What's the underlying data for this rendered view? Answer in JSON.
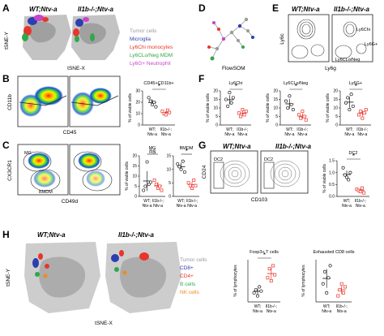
{
  "panels": {
    "A": {
      "letter": "A",
      "titles": [
        "WT;Ntv-a",
        "Il1b-/-;Ntv-a"
      ],
      "xlabel": "tSNE-X",
      "ylabel": "tSNE-Y",
      "legend": [
        {
          "label": "Tumor cells",
          "color": "#9a9a9a"
        },
        {
          "label": "Microglia",
          "color": "#2b3fb0"
        },
        {
          "label": "Ly6Chi monocytes",
          "color": "#e8352b"
        },
        {
          "label": "Ly6CLo/Neg MDM",
          "color": "#2fa84a"
        },
        {
          "label": "Ly6G+ Neutrophil",
          "color": "#c845c8"
        }
      ]
    },
    "B": {
      "letter": "B",
      "xlabel": "CD45",
      "ylabel": "CD11b",
      "bar_title": "CD45+CD11b+",
      "bar_ylabel": "% of viable cells",
      "groups": [
        "WT; Ntv-a",
        "Il1b-/-; Ntv-a"
      ],
      "sig": "*",
      "yticks": [
        "0",
        "10",
        "20",
        "30"
      ]
    },
    "C": {
      "letter": "C",
      "xlabel": "CD49d",
      "ylabel": "CX3CR1",
      "gate1": "MG",
      "gate2": "BMDM",
      "bar_ylabel": "% of viable cells",
      "mg": {
        "title": "MG",
        "sig": "ns",
        "yticks": [
          "0",
          "5",
          "10",
          "15",
          "20"
        ]
      },
      "bmdm": {
        "title": "BMDM",
        "sig": "*",
        "yticks": [
          "0",
          "5",
          "10",
          "15"
        ]
      },
      "groups": [
        "WT; Ntv-a",
        "Il1b-/-; Ntv-a"
      ]
    },
    "D": {
      "letter": "D",
      "label": "FlowSOM"
    },
    "E": {
      "letter": "E",
      "titles": [
        "WT;Ntv-a",
        "Il1b-/-;Ntv-a"
      ],
      "xlabel": "Ly6g",
      "ylabel": "Ly6c",
      "gates": [
        "Ly6Chi",
        "Ly6G+",
        "Ly6CLo/Neg"
      ]
    },
    "F": {
      "letter": "F",
      "bar_ylabel": "% of viable cells",
      "groups": [
        "WT; Ntv-a",
        "Il1b-/-; Ntv-a"
      ],
      "plots": [
        {
          "title": "Ly6Chi",
          "sig": "*",
          "yticks": [
            "0",
            "5",
            "10",
            "15",
            "20"
          ]
        },
        {
          "title": "Ly6CLo/Neg",
          "sig": "*",
          "yticks": [
            "0",
            "5",
            "10",
            "15",
            "20"
          ]
        },
        {
          "title": "Ly6G+",
          "sig": "*",
          "yticks": [
            "0",
            "5",
            "10",
            "15",
            "20"
          ]
        }
      ]
    },
    "G": {
      "letter": "G",
      "titles": [
        "WT;Ntv-a",
        "Il1b-/-;Ntv-a"
      ],
      "xlabel": "CD103",
      "ylabel": "CD24",
      "gate": "DC2",
      "bar_title": "DC2",
      "bar_ylabel": "% of viable cells",
      "sig": "*",
      "yticks": [
        "0.0",
        "0.5",
        "1.0",
        "1.5"
      ],
      "groups": [
        "WT; Ntv-a",
        "Il1b-/-; Ntv-a"
      ]
    },
    "H": {
      "letter": "H",
      "titles": [
        "WT;Ntv-a",
        "Il1b-/-;Ntv-a"
      ],
      "xlabel": "tSNE-X",
      "ylabel": "tSNE-Y",
      "legend": [
        {
          "label": "Tumor cells",
          "color": "#9a9a9a"
        },
        {
          "label": "CD8+",
          "color": "#2b3fb0"
        },
        {
          "label": "CD4+",
          "color": "#e8352b"
        },
        {
          "label": "B cells",
          "color": "#2fa84a"
        },
        {
          "label": "NK cells",
          "color": "#f08a1c"
        }
      ],
      "bar_ylabel": "% of lymphocytes",
      "plots": [
        {
          "title": "Foxp3+ T cells",
          "sig": "*"
        },
        {
          "title": "Exhausted CD8 cells",
          "sig": ""
        }
      ],
      "groups": [
        "WT; Ntv-a",
        "Il1b-/-; Ntv-a"
      ]
    }
  },
  "chart_data": [
    {
      "type": "scatter",
      "title": "CD45+CD11b+",
      "categories": [
        "WT; Ntv-a",
        "Il1b-/-; Ntv-a"
      ],
      "series": [
        {
          "values": [
            24,
            21,
            18,
            20,
            16
          ]
        },
        {
          "values": [
            12,
            10,
            9,
            13,
            11
          ]
        }
      ],
      "ylim": [
        0,
        30
      ]
    },
    {
      "type": "scatter",
      "title": "MG",
      "categories": [
        "WT; Ntv-a",
        "Il1b-/-; Ntv-a"
      ],
      "series": [
        {
          "values": [
            3,
            5,
            17,
            6,
            7
          ]
        },
        {
          "values": [
            8,
            6,
            4,
            5,
            3
          ]
        }
      ],
      "ylim": [
        0,
        20
      ]
    },
    {
      "type": "scatter",
      "title": "BMDM",
      "categories": [
        "WT; Ntv-a",
        "Il1b-/-; Ntv-a"
      ],
      "series": [
        {
          "values": [
            12,
            11,
            10,
            13,
            9
          ]
        },
        {
          "values": [
            5,
            4,
            3,
            6,
            4
          ]
        }
      ],
      "ylim": [
        0,
        15
      ]
    },
    {
      "type": "scatter",
      "title": "Ly6Chi",
      "categories": [
        "WT; Ntv-a",
        "Il1b-/-; Ntv-a"
      ],
      "series": [
        {
          "values": [
            15,
            11,
            19,
            13,
            16
          ]
        },
        {
          "values": [
            7,
            5,
            9,
            6,
            8
          ]
        }
      ],
      "ylim": [
        0,
        20
      ]
    },
    {
      "type": "scatter",
      "title": "Ly6CLo/Neg",
      "categories": [
        "WT; Ntv-a",
        "Il1b-/-; Ntv-a"
      ],
      "series": [
        {
          "values": [
            14,
            10,
            17,
            12,
            9
          ]
        },
        {
          "values": [
            6,
            4,
            8,
            5,
            3
          ]
        }
      ],
      "ylim": [
        0,
        20
      ]
    },
    {
      "type": "scatter",
      "title": "Ly6G+",
      "categories": [
        "WT; Ntv-a",
        "Il1b-/-; Ntv-a"
      ],
      "series": [
        {
          "values": [
            13,
            16,
            9,
            18,
            11
          ]
        },
        {
          "values": [
            6,
            8,
            4,
            7,
            9
          ]
        }
      ],
      "ylim": [
        0,
        20
      ]
    },
    {
      "type": "scatter",
      "title": "DC2",
      "categories": [
        "WT; Ntv-a",
        "Il1b-/-; Ntv-a"
      ],
      "series": [
        {
          "values": [
            1.2,
            0.9,
            0.8,
            0.7,
            1.0
          ]
        },
        {
          "values": [
            0.3,
            0.25,
            0.2,
            0.35,
            0.15
          ]
        }
      ],
      "ylim": [
        0,
        1.5
      ]
    },
    {
      "type": "scatter",
      "title": "Foxp3+ T cells",
      "categories": [
        "WT; Ntv-a",
        "Il1b-/-; Ntv-a"
      ],
      "series": [
        {
          "values": [
            1.5,
            2.0,
            1.0,
            2.5,
            1.8
          ]
        },
        {
          "values": [
            4.0,
            5.5,
            3.5,
            6.0,
            4.5
          ]
        }
      ],
      "ylim": [
        0,
        7
      ]
    },
    {
      "type": "scatter",
      "title": "Exhausted CD8 cells",
      "categories": [
        "WT; Ntv-a",
        "Il1b-/-; Ntv-a"
      ],
      "series": [
        {
          "values": [
            6,
            10,
            3,
            8,
            12
          ]
        },
        {
          "values": [
            2,
            4,
            6,
            3,
            5
          ]
        }
      ],
      "ylim": [
        0,
        14
      ]
    }
  ]
}
